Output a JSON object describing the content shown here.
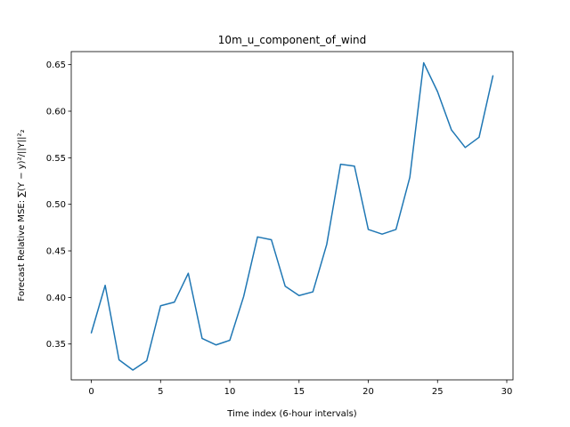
{
  "chart_data": {
    "type": "line",
    "title": "10m_u_component_of_wind",
    "xlabel": "Time index (6-hour intervals)",
    "ylabel": "Forecast Relative MSE: ",
    "ylabel_math": "∑(Y − y)²/||Y||²₂",
    "xlim": [
      -1.45,
      30.45
    ],
    "ylim": [
      0.3115,
      0.664
    ],
    "xticks": [
      0,
      5,
      10,
      15,
      20,
      25,
      30
    ],
    "yticks": [
      0.35,
      0.4,
      0.45,
      0.5,
      0.55,
      0.6,
      0.65
    ],
    "ytick_labels": [
      "0.35",
      "0.40",
      "0.45",
      "0.50",
      "0.55",
      "0.60",
      "0.65"
    ],
    "grid": false,
    "series": [
      {
        "color": "#1f77b4",
        "x": [
          0,
          1,
          2,
          3,
          4,
          5,
          6,
          7,
          8,
          9,
          10,
          11,
          12,
          13,
          14,
          15,
          16,
          17,
          18,
          19,
          20,
          21,
          22,
          23,
          24,
          25,
          26,
          27,
          28,
          29
        ],
        "y": [
          0.362,
          0.413,
          0.333,
          0.322,
          0.332,
          0.391,
          0.395,
          0.426,
          0.356,
          0.349,
          0.354,
          0.401,
          0.465,
          0.462,
          0.412,
          0.402,
          0.406,
          0.457,
          0.543,
          0.541,
          0.473,
          0.468,
          0.473,
          0.529,
          0.652,
          0.621,
          0.58,
          0.561,
          0.572,
          0.638
        ]
      }
    ]
  }
}
